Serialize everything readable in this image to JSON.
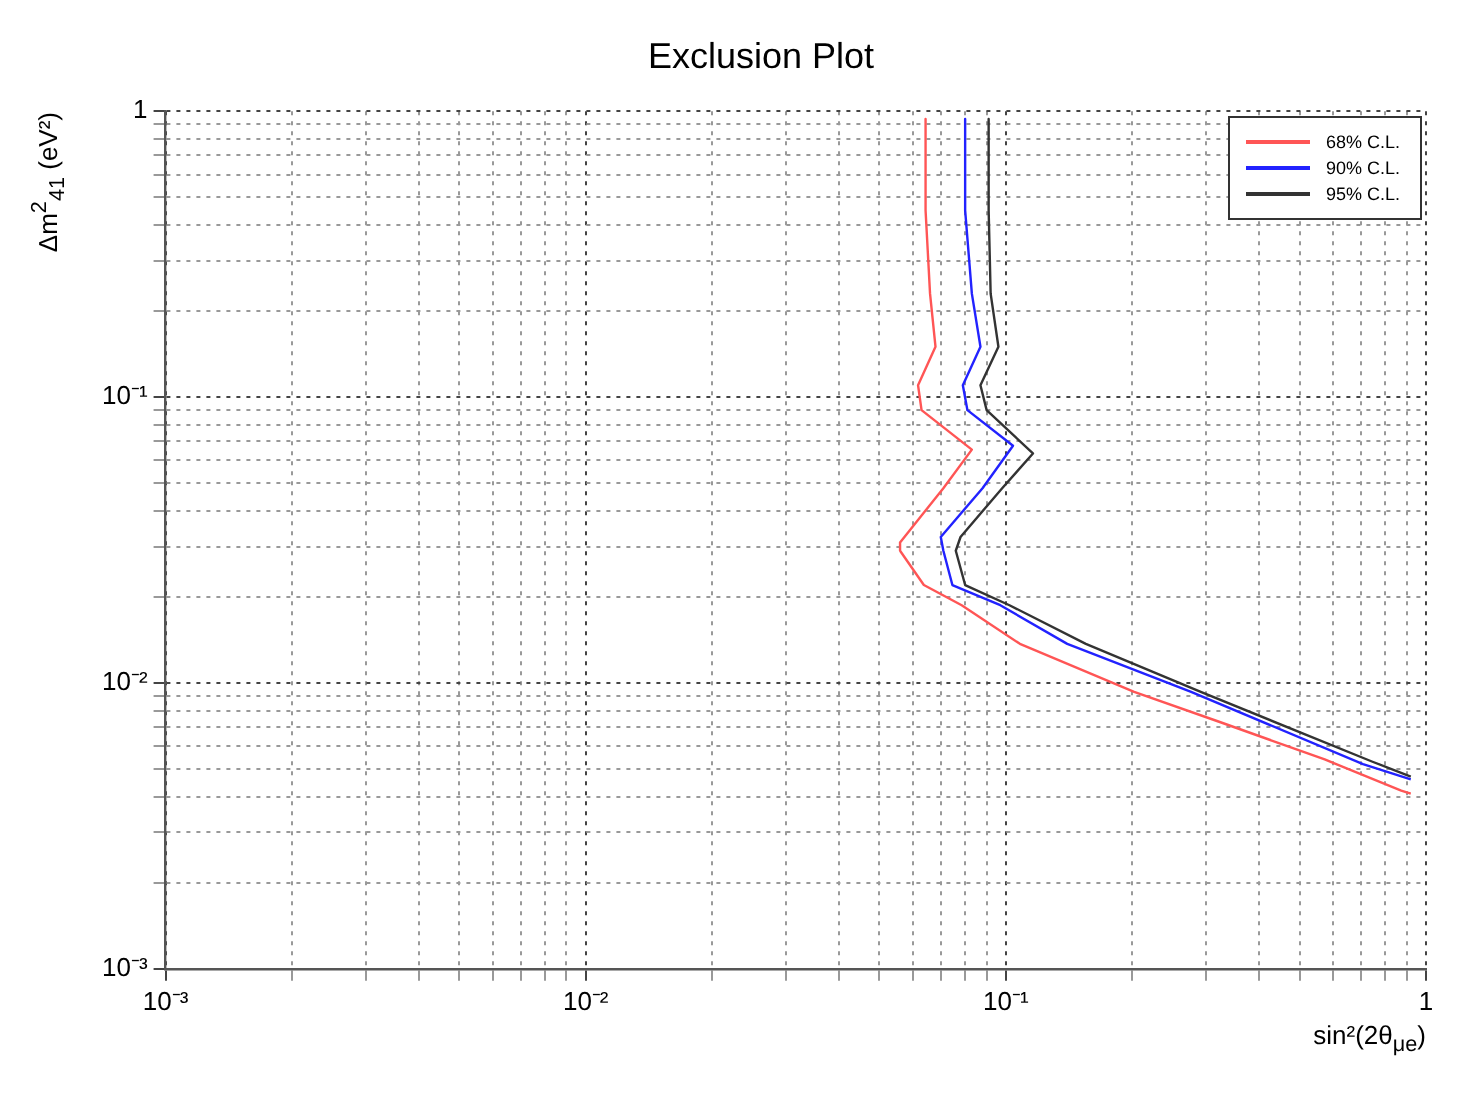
{
  "chart_data": {
    "type": "line",
    "title": "Exclusion Plot",
    "xlabel": "sin²(2θ$_{μe}$)",
    "ylabel": "Δm$^{2}$$_{41}$ (eV²)",
    "log": "xy",
    "grid": true,
    "line_style": "solid",
    "marker": "none",
    "legend": "top right",
    "xlim": [
      0.001,
      1
    ],
    "ylim": [
      0.001,
      1
    ],
    "xticks": [
      {
        "value": 0.001,
        "label": "10⁻³"
      },
      {
        "value": 0.002,
        "label": null
      },
      {
        "value": 0.003,
        "label": null
      },
      {
        "value": 0.004,
        "label": null
      },
      {
        "value": 0.005,
        "label": null
      },
      {
        "value": 0.006,
        "label": null
      },
      {
        "value": 0.007,
        "label": null
      },
      {
        "value": 0.008,
        "label": null
      },
      {
        "value": 0.009,
        "label": null
      },
      {
        "value": 0.01,
        "label": "10⁻²"
      },
      {
        "value": 0.02,
        "label": null
      },
      {
        "value": 0.03,
        "label": null
      },
      {
        "value": 0.04,
        "label": null
      },
      {
        "value": 0.05,
        "label": null
      },
      {
        "value": 0.06,
        "label": null
      },
      {
        "value": 0.07,
        "label": null
      },
      {
        "value": 0.08,
        "label": null
      },
      {
        "value": 0.09,
        "label": null
      },
      {
        "value": 0.1,
        "label": "10⁻¹"
      },
      {
        "value": 0.2,
        "label": null
      },
      {
        "value": 0.3,
        "label": null
      },
      {
        "value": 0.4,
        "label": null
      },
      {
        "value": 0.5,
        "label": null
      },
      {
        "value": 0.6,
        "label": null
      },
      {
        "value": 0.7,
        "label": null
      },
      {
        "value": 0.8,
        "label": null
      },
      {
        "value": 0.9,
        "label": null
      },
      1
    ],
    "yticks": [
      {
        "value": 0.001,
        "label": "10⁻³"
      },
      {
        "value": 0.002,
        "label": null
      },
      {
        "value": 0.003,
        "label": null
      },
      {
        "value": 0.004,
        "label": null
      },
      {
        "value": 0.005,
        "label": null
      },
      {
        "value": 0.006,
        "label": null
      },
      {
        "value": 0.007,
        "label": null
      },
      {
        "value": 0.008,
        "label": null
      },
      {
        "value": 0.009,
        "label": null
      },
      {
        "value": 0.01,
        "label": "10⁻²"
      },
      {
        "value": 0.02,
        "label": null
      },
      {
        "value": 0.03,
        "label": null
      },
      {
        "value": 0.04,
        "label": null
      },
      {
        "value": 0.05,
        "label": null
      },
      {
        "value": 0.06,
        "label": null
      },
      {
        "value": 0.07,
        "label": null
      },
      {
        "value": 0.08,
        "label": null
      },
      {
        "value": 0.09,
        "label": null
      },
      {
        "value": 0.1,
        "label": "10⁻¹"
      },
      {
        "value": 0.2,
        "label": null
      },
      {
        "value": 0.3,
        "label": null
      },
      {
        "value": 0.4,
        "label": null
      },
      {
        "value": 0.5,
        "label": null
      },
      {
        "value": 0.6,
        "label": null
      },
      {
        "value": 0.7,
        "label": null
      },
      {
        "value": 0.8,
        "label": null
      },
      {
        "value": 0.9,
        "label": null
      },
      1
    ],
    "series": [
      {
        "name": "68% C.L.",
        "color": "#ff5555",
        "x": [
          0.0644,
          0.0644,
          0.066,
          0.068,
          0.0618,
          0.063,
          0.083,
          0.071,
          0.056,
          0.056,
          0.0638,
          0.0785,
          0.108,
          0.202,
          0.323,
          0.574,
          0.873,
          0.92
        ],
        "values": [
          0.94,
          0.45,
          0.23,
          0.15,
          0.11,
          0.09,
          0.0655,
          0.048,
          0.031,
          0.029,
          0.022,
          0.0187,
          0.0137,
          0.0093,
          0.0073,
          0.0054,
          0.0042,
          0.0041
        ]
      },
      {
        "name": "90% C.L.",
        "color": "#2222ff",
        "x": [
          0.08,
          0.08,
          0.083,
          0.087,
          0.079,
          0.081,
          0.104,
          0.088,
          0.07,
          0.071,
          0.0746,
          0.097,
          0.14,
          0.276,
          0.708,
          0.92
        ],
        "values": [
          0.94,
          0.45,
          0.23,
          0.15,
          0.11,
          0.09,
          0.0676,
          0.048,
          0.0324,
          0.029,
          0.022,
          0.0187,
          0.0137,
          0.0093,
          0.0052,
          0.0046
        ]
      },
      {
        "name": "95% C.L.",
        "color": "#333333",
        "x": [
          0.091,
          0.091,
          0.092,
          0.096,
          0.087,
          0.09,
          0.116,
          0.098,
          0.078,
          0.076,
          0.08,
          0.102,
          0.155,
          0.291,
          0.746,
          0.92
        ],
        "values": [
          0.94,
          0.45,
          0.23,
          0.15,
          0.11,
          0.09,
          0.0635,
          0.048,
          0.0324,
          0.029,
          0.022,
          0.0187,
          0.0137,
          0.0093,
          0.0053,
          0.0047
        ]
      }
    ]
  }
}
